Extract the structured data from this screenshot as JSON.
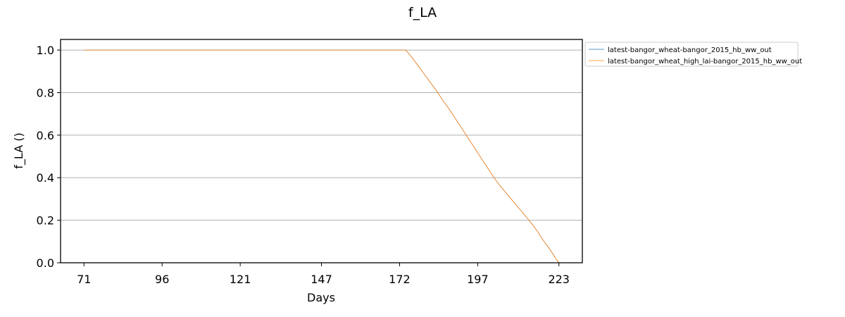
{
  "chart_data": {
    "type": "line",
    "title": "f_LA",
    "xlabel": "Days",
    "ylabel": "f_LA ()",
    "xlim": [
      63.5,
      230.5
    ],
    "ylim": [
      0.0,
      1.05
    ],
    "x_ticks": [
      71,
      96,
      121,
      147,
      172,
      197,
      223
    ],
    "y_ticks": [
      0.0,
      0.2,
      0.4,
      0.6,
      0.8,
      1.0
    ],
    "y_tick_labels": [
      "0.0",
      "0.2",
      "0.4",
      "0.6",
      "0.8",
      "1.0"
    ],
    "grid": "horizontal",
    "legend_position": "outside-top-right",
    "series": [
      {
        "name": "latest-bangor_wheat-bangor_2015_hb_ww_out",
        "color": "#1f77b4",
        "x": [
          71,
          172,
          174,
          176,
          178,
          180,
          182,
          184,
          186,
          188,
          190,
          192,
          194,
          196,
          198,
          200,
          202,
          204,
          206,
          208,
          210,
          212,
          214,
          216,
          218,
          220,
          222,
          223
        ],
        "y": [
          1.0,
          1.0,
          1.0,
          0.965,
          0.925,
          0.885,
          0.845,
          0.805,
          0.76,
          0.72,
          0.675,
          0.63,
          0.585,
          0.54,
          0.495,
          0.45,
          0.405,
          0.365,
          0.33,
          0.295,
          0.26,
          0.225,
          0.19,
          0.15,
          0.105,
          0.065,
          0.02,
          0.0
        ]
      },
      {
        "name": "latest-bangor_wheat_high_lai-bangor_2015_hb_ww_out",
        "color": "#ff7f0e",
        "x": [
          71,
          172,
          174,
          176,
          178,
          180,
          182,
          184,
          186,
          188,
          190,
          192,
          194,
          196,
          198,
          200,
          202,
          204,
          206,
          208,
          210,
          212,
          214,
          216,
          218,
          220,
          222,
          223
        ],
        "y": [
          1.0,
          1.0,
          1.0,
          0.965,
          0.925,
          0.885,
          0.845,
          0.805,
          0.76,
          0.72,
          0.675,
          0.63,
          0.585,
          0.54,
          0.495,
          0.45,
          0.405,
          0.365,
          0.33,
          0.295,
          0.26,
          0.225,
          0.19,
          0.15,
          0.105,
          0.065,
          0.02,
          0.0
        ]
      }
    ]
  }
}
